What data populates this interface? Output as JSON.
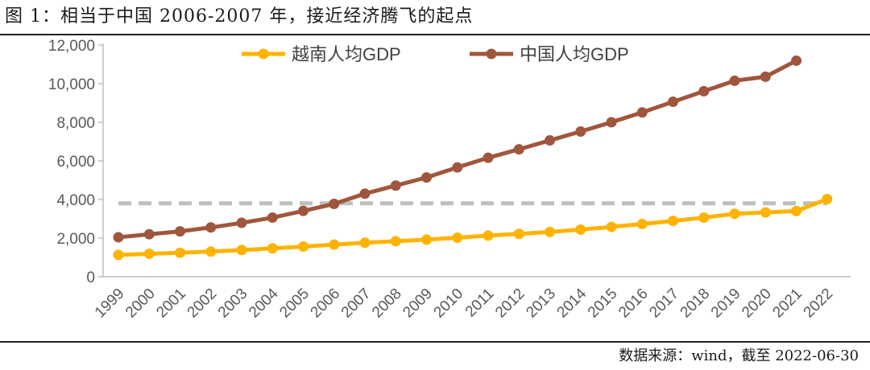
{
  "header": {
    "title": "图 1：相当于中国 2006-2007 年，接近经济腾飞的起点"
  },
  "footer": {
    "source": "数据来源：wind，截至 2022-06-30"
  },
  "chart_data": {
    "type": "line",
    "categories": [
      "1999",
      "2000",
      "2001",
      "2002",
      "2003",
      "2004",
      "2005",
      "2006",
      "2007",
      "2008",
      "2009",
      "2010",
      "2011",
      "2012",
      "2013",
      "2014",
      "2015",
      "2016",
      "2017",
      "2018",
      "2019",
      "2020",
      "2021",
      "2022"
    ],
    "series": [
      {
        "name": "越南人均GDP",
        "color": "#FFB300",
        "values": [
          1130,
          1190,
          1240,
          1300,
          1380,
          1470,
          1560,
          1660,
          1760,
          1840,
          1920,
          2020,
          2130,
          2220,
          2320,
          2440,
          2580,
          2730,
          2890,
          3060,
          3260,
          3330,
          3400,
          4020
        ]
      },
      {
        "name": "中国人均GDP",
        "color": "#A0563D",
        "values": [
          2040,
          2200,
          2350,
          2550,
          2790,
          3060,
          3410,
          3770,
          4300,
          4720,
          5140,
          5660,
          6160,
          6600,
          7060,
          7520,
          8000,
          8510,
          9060,
          9610,
          10150,
          10360,
          11190,
          null
        ]
      }
    ],
    "reference_line": {
      "value": 3800,
      "color": "#BFBFBF",
      "style": "dashed"
    },
    "ylim": [
      0,
      12000
    ],
    "yticks": [
      0,
      2000,
      4000,
      6000,
      8000,
      10000,
      12000
    ],
    "ytick_labels": [
      "0",
      "2,000",
      "4,000",
      "6,000",
      "8,000",
      "10,000",
      "12,000"
    ],
    "grid": false,
    "legend_position": "top"
  }
}
